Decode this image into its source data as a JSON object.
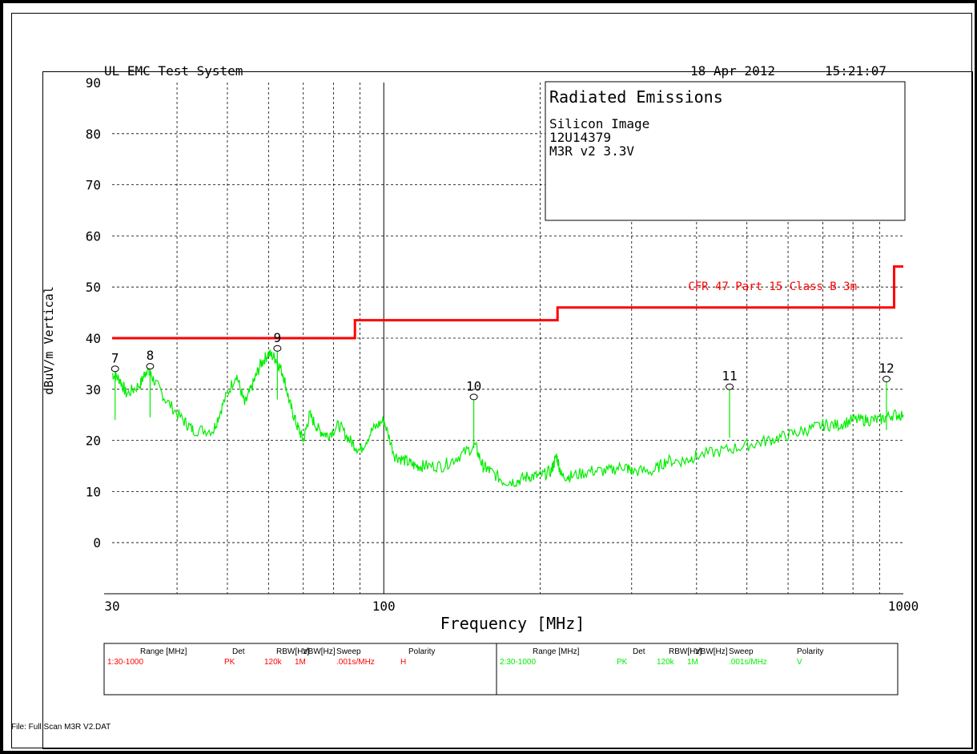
{
  "header": {
    "system": "UL EMC Test System",
    "date": "18 Apr 2012",
    "time": "15:21:07"
  },
  "info_box": {
    "title": "Radiated Emissions",
    "line1": "Silicon Image",
    "line2": "12U14379",
    "line3": "M3R v2 3.3V"
  },
  "footer": {
    "file": "File: Full Scan M3R V2.DAT"
  },
  "colors": {
    "limit": "#ff0000",
    "trace": "#00ee00",
    "grid": "#000000"
  },
  "legend_table": {
    "headers": [
      "Range [MHz]",
      "Det",
      "RBW[Hz]",
      "VBW[Hz]",
      "Sweep",
      "Polarity"
    ],
    "rows": [
      {
        "range": "1:30-1000",
        "det": "PK",
        "rbw": "120k",
        "vbw": "1M",
        "sweep": ".001s/MHz",
        "polarity": "H",
        "color": "#ff0000"
      },
      {
        "range": "2:30-1000",
        "det": "PK",
        "rbw": "120k",
        "vbw": "1M",
        "sweep": ".001s/MHz",
        "polarity": "V",
        "color": "#00ee00"
      }
    ]
  },
  "chart_data": {
    "type": "line",
    "xlabel": "Frequency [MHz]",
    "ylabel": "dBuV/m Vertical",
    "xscale": "log",
    "xlim": [
      30,
      1000
    ],
    "ylim": [
      -10,
      90
    ],
    "x_ticks": [
      30,
      100,
      1000
    ],
    "x_tick_labels": [
      "30",
      "100",
      "1000"
    ],
    "y_ticks": [
      0,
      10,
      20,
      30,
      40,
      50,
      60,
      70,
      80,
      90
    ],
    "y_tick_labels": [
      "0",
      "10",
      "20",
      "30",
      "40",
      "50",
      "60",
      "70",
      "80",
      "90"
    ],
    "grid": true,
    "limit_line": {
      "label": "CFR 47 Part 15 Class B 3m",
      "segments": [
        [
          30,
          88,
          40
        ],
        [
          88,
          216,
          43.5
        ],
        [
          216,
          960,
          46
        ],
        [
          960,
          1000,
          54
        ]
      ]
    },
    "trace": {
      "x": [
        30,
        31,
        32,
        34,
        35,
        36,
        38,
        41,
        43,
        47,
        49,
        52,
        54,
        56,
        58,
        60,
        62,
        64,
        66,
        68,
        70,
        72,
        75,
        78,
        82,
        86,
        90,
        95,
        100,
        105,
        110,
        115,
        120,
        130,
        140,
        150,
        155,
        160,
        170,
        180,
        190,
        200,
        210,
        215,
        220,
        230,
        250,
        270,
        290,
        300,
        330,
        350,
        380,
        400,
        450,
        500,
        550,
        600,
        650,
        700,
        750,
        800,
        850,
        900,
        950,
        1000
      ],
      "y": [
        33,
        32,
        29,
        31,
        34,
        32,
        28,
        24,
        22,
        22,
        27,
        33,
        27,
        31,
        35,
        37,
        36,
        33,
        27,
        23,
        20,
        25,
        22,
        21,
        23,
        20,
        18,
        22,
        24,
        17,
        16,
        15,
        15,
        15,
        17,
        19,
        15,
        14,
        12,
        12,
        13,
        13,
        14,
        17,
        13,
        13,
        14,
        14,
        15,
        14,
        14,
        16,
        16,
        17,
        18,
        19,
        20,
        21,
        22,
        23,
        23,
        24,
        24,
        24,
        25,
        25
      ]
    },
    "markers": [
      {
        "label": "7",
        "x": 30.4,
        "y": 34
      },
      {
        "label": "8",
        "x": 35.5,
        "y": 34.5
      },
      {
        "label": "9",
        "x": 62.4,
        "y": 38
      },
      {
        "label": "10",
        "x": 149,
        "y": 28.5
      },
      {
        "label": "11",
        "x": 463,
        "y": 30.5
      },
      {
        "label": "12",
        "x": 928,
        "y": 32
      }
    ]
  }
}
